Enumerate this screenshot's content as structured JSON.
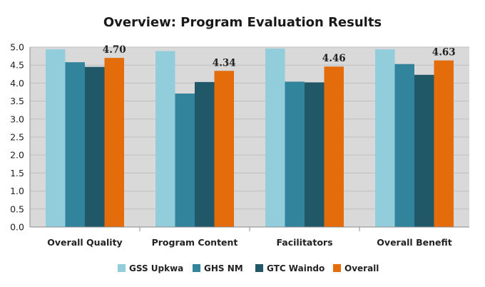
{
  "chart_data": {
    "type": "bar",
    "title": "Overview: Program Evaluation Results",
    "xlabel": "",
    "ylabel": "",
    "ylim": [
      0,
      5
    ],
    "yticks": [
      "0.0",
      "0.5",
      "1.0",
      "1.5",
      "2.0",
      "2.5",
      "3.0",
      "3.5",
      "4.0",
      "4.5",
      "5.0"
    ],
    "grid": true,
    "legend_position": "bottom",
    "categories": [
      "Overall Quality",
      "Program Content",
      "Facilitators",
      "Overall Benefit"
    ],
    "series": [
      {
        "name": "GSS Upkwa",
        "color": "#92cddc",
        "values": [
          4.94,
          4.89,
          4.96,
          4.94
        ]
      },
      {
        "name": "GHS NM",
        "color": "#31849b",
        "values": [
          4.58,
          3.71,
          4.04,
          4.53
        ]
      },
      {
        "name": "GTC Waindo",
        "color": "#215868",
        "values": [
          4.45,
          4.03,
          4.02,
          4.23
        ]
      },
      {
        "name": "Overall",
        "color": "#e46c0a",
        "values": [
          4.7,
          4.34,
          4.46,
          4.63
        ]
      }
    ],
    "data_labels": {
      "series": "Overall",
      "labels": [
        "4.70",
        "4.34",
        "4.46",
        "4.63"
      ]
    }
  }
}
